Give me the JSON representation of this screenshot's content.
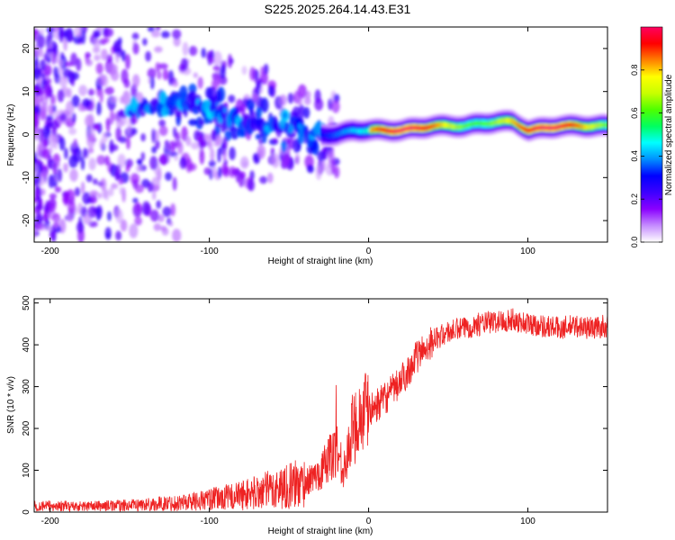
{
  "title": "S225.2025.264.14.43.E31",
  "chart_data": [
    {
      "type": "heatmap",
      "xlabel": "Height of straight line (km)",
      "ylabel": "Frequency (Hz)",
      "xlim": [
        -210,
        150
      ],
      "ylim": [
        -25,
        25
      ],
      "xticks": [
        -200,
        -100,
        0,
        100
      ],
      "yticks": [
        -20,
        -10,
        0,
        10,
        20
      ],
      "colorbar": {
        "label": "Normalized spectral amplitude",
        "range": [
          0,
          1
        ],
        "ticks": [
          0.0,
          0.2,
          0.4,
          0.6,
          0.8
        ],
        "tick_labels": [
          "0.0",
          "0.2",
          "0.4",
          "0.6",
          "0.8"
        ],
        "colors": [
          "#ffffff",
          "#c58cff",
          "#8a00ff",
          "#3d00ff",
          "#0000ff",
          "#0090ff",
          "#00ffff",
          "#00ff60",
          "#4dff00",
          "#c8ff00",
          "#ffff00",
          "#ff8000",
          "#ff0000",
          "#ff0060"
        ]
      },
      "ridge": {
        "description_points_x": [
          -200,
          -150,
          -110,
          -90,
          -70,
          -50,
          -30,
          -20,
          -10,
          0,
          20,
          40,
          60,
          80,
          90,
          100,
          120,
          150
        ],
        "description_points_freq": [
          6,
          6,
          7,
          4,
          2,
          2,
          0,
          0,
          1,
          1,
          1,
          2,
          2,
          3,
          3,
          1,
          2,
          2
        ]
      }
    },
    {
      "type": "line",
      "xlabel": "Height of straight line (km)",
      "ylabel": "SNR (10 * v/v)",
      "xlim": [
        -210,
        150
      ],
      "ylim": [
        0,
        510
      ],
      "xticks": [
        -200,
        -100,
        0,
        100
      ],
      "yticks": [
        0,
        100,
        200,
        300,
        400,
        500
      ],
      "color": "#ee2222",
      "series": [
        {
          "name": "SNR",
          "x": [
            -210,
            -180,
            -150,
            -120,
            -100,
            -80,
            -60,
            -40,
            -30,
            -25,
            -20,
            -15,
            -10,
            -5,
            0,
            5,
            10,
            15,
            20,
            25,
            30,
            35,
            40,
            50,
            60,
            70,
            80,
            90,
            100,
            110,
            120,
            130,
            140,
            150
          ],
          "values": [
            15,
            14,
            16,
            22,
            30,
            40,
            55,
            70,
            95,
            130,
            150,
            100,
            200,
            230,
            240,
            255,
            270,
            290,
            310,
            340,
            370,
            390,
            410,
            430,
            440,
            450,
            455,
            460,
            450,
            445,
            440,
            445,
            440,
            445
          ]
        }
      ]
    }
  ]
}
